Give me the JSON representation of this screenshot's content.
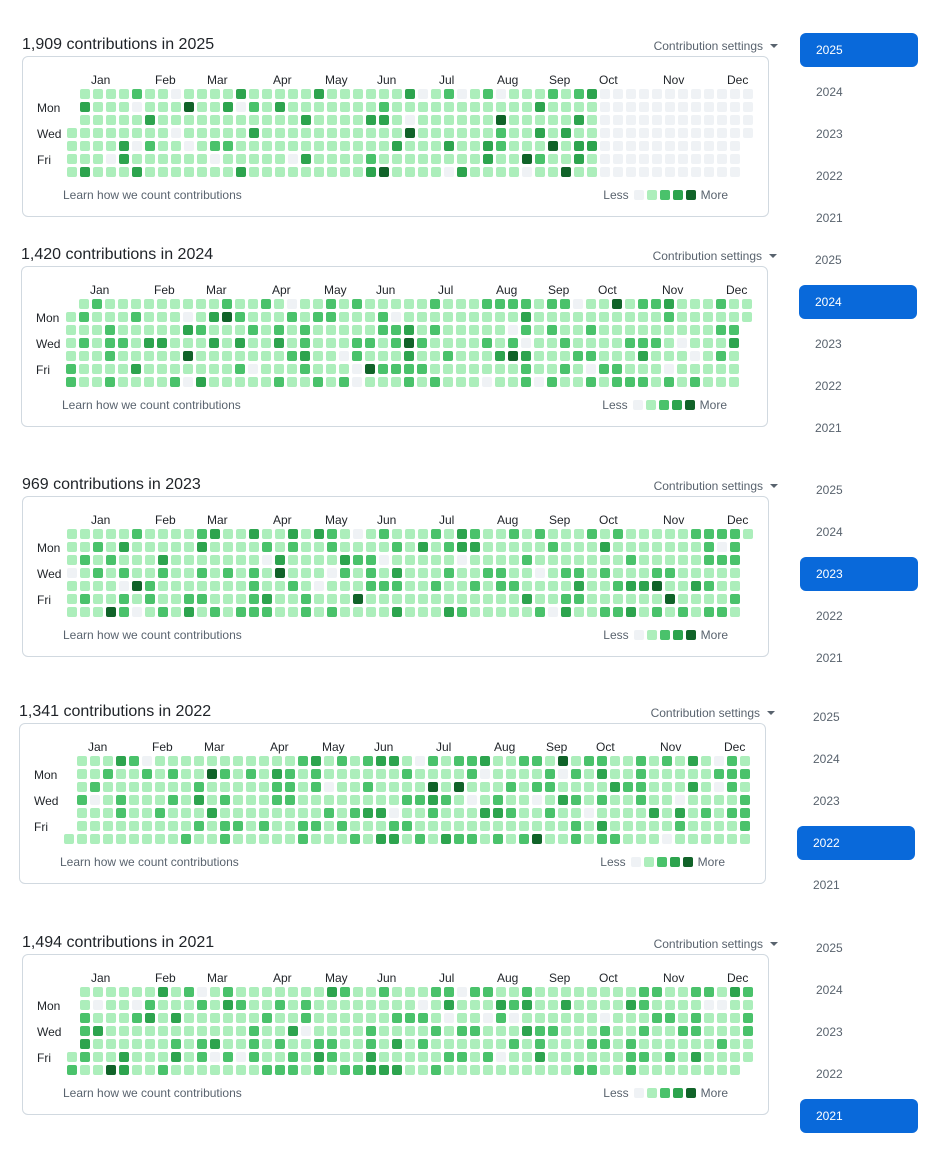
{
  "months": [
    "Jan",
    "Feb",
    "Mar",
    "Apr",
    "May",
    "Jun",
    "Jul",
    "Aug",
    "Sep",
    "Oct",
    "Nov",
    "Dec"
  ],
  "days": [
    "Mon",
    "Wed",
    "Fri"
  ],
  "settings_label": "Contribution settings",
  "learn_label": "Learn how we count contributions",
  "legend": {
    "less": "Less",
    "more": "More"
  },
  "colors": {
    "empty": "#eff2f5",
    "level1": "#aceebb",
    "level2": "#4ac26b",
    "level3": "#2da44e",
    "level4": "#116329",
    "selected_year": "#0969da"
  },
  "blocks": [
    {
      "title": "1,909 contributions in 2025",
      "year": "2025",
      "seed": 11,
      "weeks": 53,
      "start_dow": 3,
      "active_weeks": 41,
      "palette": "bright",
      "years": [
        {
          "label": "2025",
          "selected": true
        },
        {
          "label": "2024",
          "selected": false
        },
        {
          "label": "2023",
          "selected": false
        },
        {
          "label": "2022",
          "selected": false
        },
        {
          "label": "2021",
          "selected": false
        }
      ]
    },
    {
      "title": "1,420 contributions in 2024",
      "year": "2024",
      "seed": 23,
      "weeks": 53,
      "start_dow": 1,
      "active_weeks": 53,
      "palette": "forest",
      "years": [
        {
          "label": "2025",
          "selected": false
        },
        {
          "label": "2024",
          "selected": true
        },
        {
          "label": "2023",
          "selected": false
        },
        {
          "label": "2022",
          "selected": false
        },
        {
          "label": "2021",
          "selected": false
        }
      ]
    },
    {
      "title": "969 contributions in 2023",
      "year": "2023",
      "seed": 37,
      "weeks": 53,
      "start_dow": 0,
      "active_weeks": 53,
      "palette": "forest",
      "years": [
        {
          "label": "2025",
          "selected": false
        },
        {
          "label": "2024",
          "selected": false
        },
        {
          "label": "2023",
          "selected": true
        },
        {
          "label": "2022",
          "selected": false
        },
        {
          "label": "2021",
          "selected": false
        }
      ]
    },
    {
      "title": "1,341 contributions in 2022",
      "year": "2022",
      "seed": 53,
      "weeks": 53,
      "start_dow": 6,
      "active_weeks": 53,
      "palette": "forest",
      "years": [
        {
          "label": "2025",
          "selected": false
        },
        {
          "label": "2024",
          "selected": false
        },
        {
          "label": "2023",
          "selected": false
        },
        {
          "label": "2022",
          "selected": true
        },
        {
          "label": "2021",
          "selected": false
        }
      ]
    },
    {
      "title": "1,494 contributions in 2021",
      "year": "2021",
      "seed": 71,
      "weeks": 53,
      "start_dow": 5,
      "active_weeks": 53,
      "palette": "forest",
      "years": [
        {
          "label": "2025",
          "selected": false
        },
        {
          "label": "2024",
          "selected": false
        },
        {
          "label": "2023",
          "selected": false
        },
        {
          "label": "2022",
          "selected": false
        },
        {
          "label": "2021",
          "selected": true
        }
      ]
    }
  ]
}
